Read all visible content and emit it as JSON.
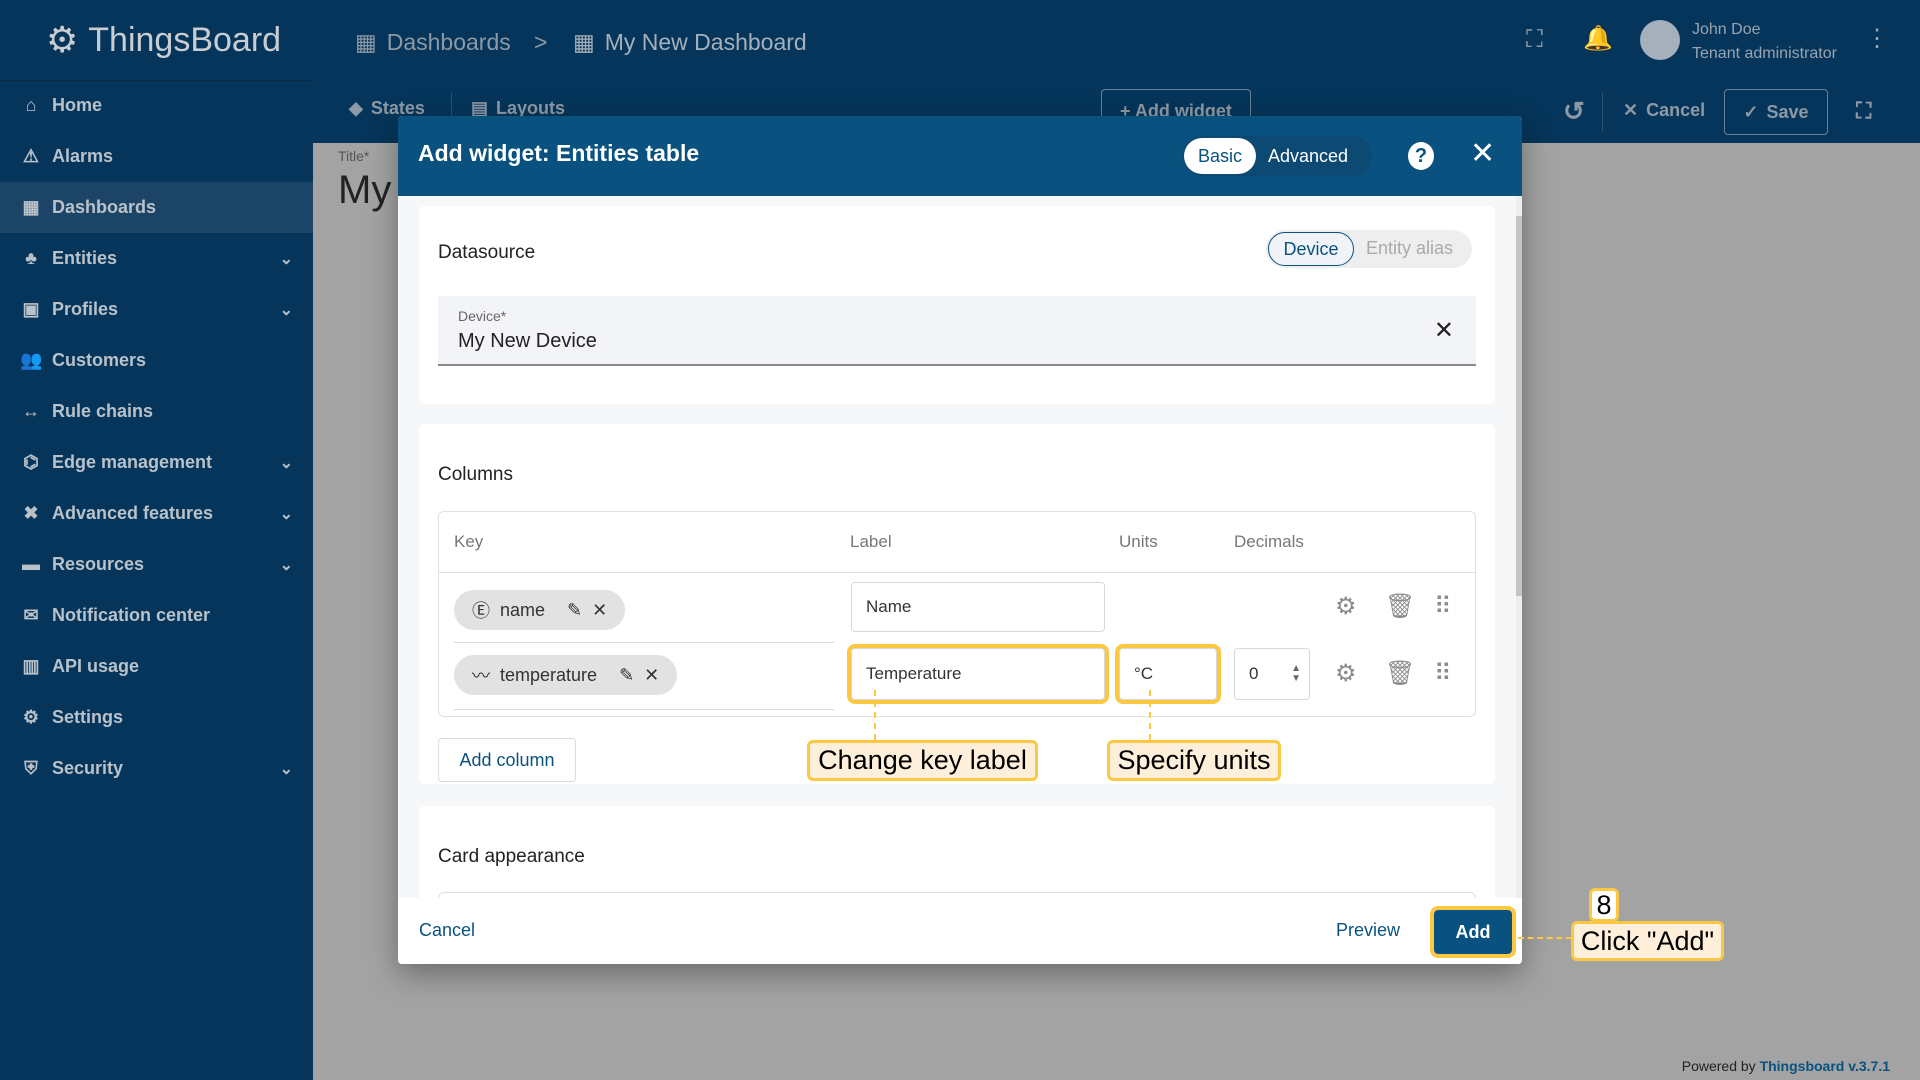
{
  "app": {
    "name": "ThingsBoard"
  },
  "sidebar": {
    "items": [
      {
        "label": "Home",
        "icon": "home-icon",
        "expand": false
      },
      {
        "label": "Alarms",
        "icon": "warning-icon",
        "expand": false
      },
      {
        "label": "Dashboards",
        "icon": "dashboard-icon",
        "expand": false,
        "active": true
      },
      {
        "label": "Entities",
        "icon": "entities-icon",
        "expand": true
      },
      {
        "label": "Profiles",
        "icon": "profiles-icon",
        "expand": true
      },
      {
        "label": "Customers",
        "icon": "customers-icon",
        "expand": false
      },
      {
        "label": "Rule chains",
        "icon": "rule-chains-icon",
        "expand": false
      },
      {
        "label": "Edge management",
        "icon": "edge-icon",
        "expand": true
      },
      {
        "label": "Advanced features",
        "icon": "tools-icon",
        "expand": true
      },
      {
        "label": "Resources",
        "icon": "folder-icon",
        "expand": true
      },
      {
        "label": "Notification center",
        "icon": "notification-icon",
        "expand": false
      },
      {
        "label": "API usage",
        "icon": "chart-icon",
        "expand": false
      },
      {
        "label": "Settings",
        "icon": "gear-icon",
        "expand": false
      },
      {
        "label": "Security",
        "icon": "shield-icon",
        "expand": true
      }
    ]
  },
  "header": {
    "breadcrumb": [
      "Dashboards",
      "My New Dashboard"
    ],
    "separator": ">",
    "user_name": "John Doe",
    "user_role": "Tenant administrator"
  },
  "toolbar": {
    "states": "States",
    "layouts": "Layouts",
    "add_widget": "+ Add widget",
    "cancel": "Cancel",
    "save": "Save"
  },
  "dashboard": {
    "title_label": "Title*",
    "title_value": "My"
  },
  "dialog": {
    "title": "Add widget: Entities table",
    "modes": [
      "Basic",
      "Advanced"
    ],
    "active_mode": "Basic",
    "datasource": {
      "title": "Datasource",
      "types": [
        "Device",
        "Entity alias"
      ],
      "active_type": "Device",
      "device_label": "Device*",
      "device_value": "My New Device"
    },
    "columns": {
      "title": "Columns",
      "headers": [
        "Key",
        "Label",
        "Units",
        "Decimals"
      ],
      "rows": [
        {
          "key": "name",
          "key_type": "entity-field",
          "label": "Name",
          "units": "",
          "decimals": ""
        },
        {
          "key": "temperature",
          "key_type": "timeseries",
          "label": "Temperature",
          "units": "°C",
          "decimals": "0"
        }
      ],
      "add_column": "Add column"
    },
    "card_appearance": {
      "title": "Card appearance"
    },
    "footer": {
      "cancel": "Cancel",
      "preview": "Preview",
      "add": "Add"
    }
  },
  "annotations": {
    "change_label": "Change key label",
    "specify_units": "Specify units",
    "step": "8",
    "click_add": "Click \"Add\"",
    "highlight_color": "#fcc844"
  },
  "footer": {
    "powered_by": "Powered by",
    "version_link": "Thingsboard v.3.7.1"
  }
}
